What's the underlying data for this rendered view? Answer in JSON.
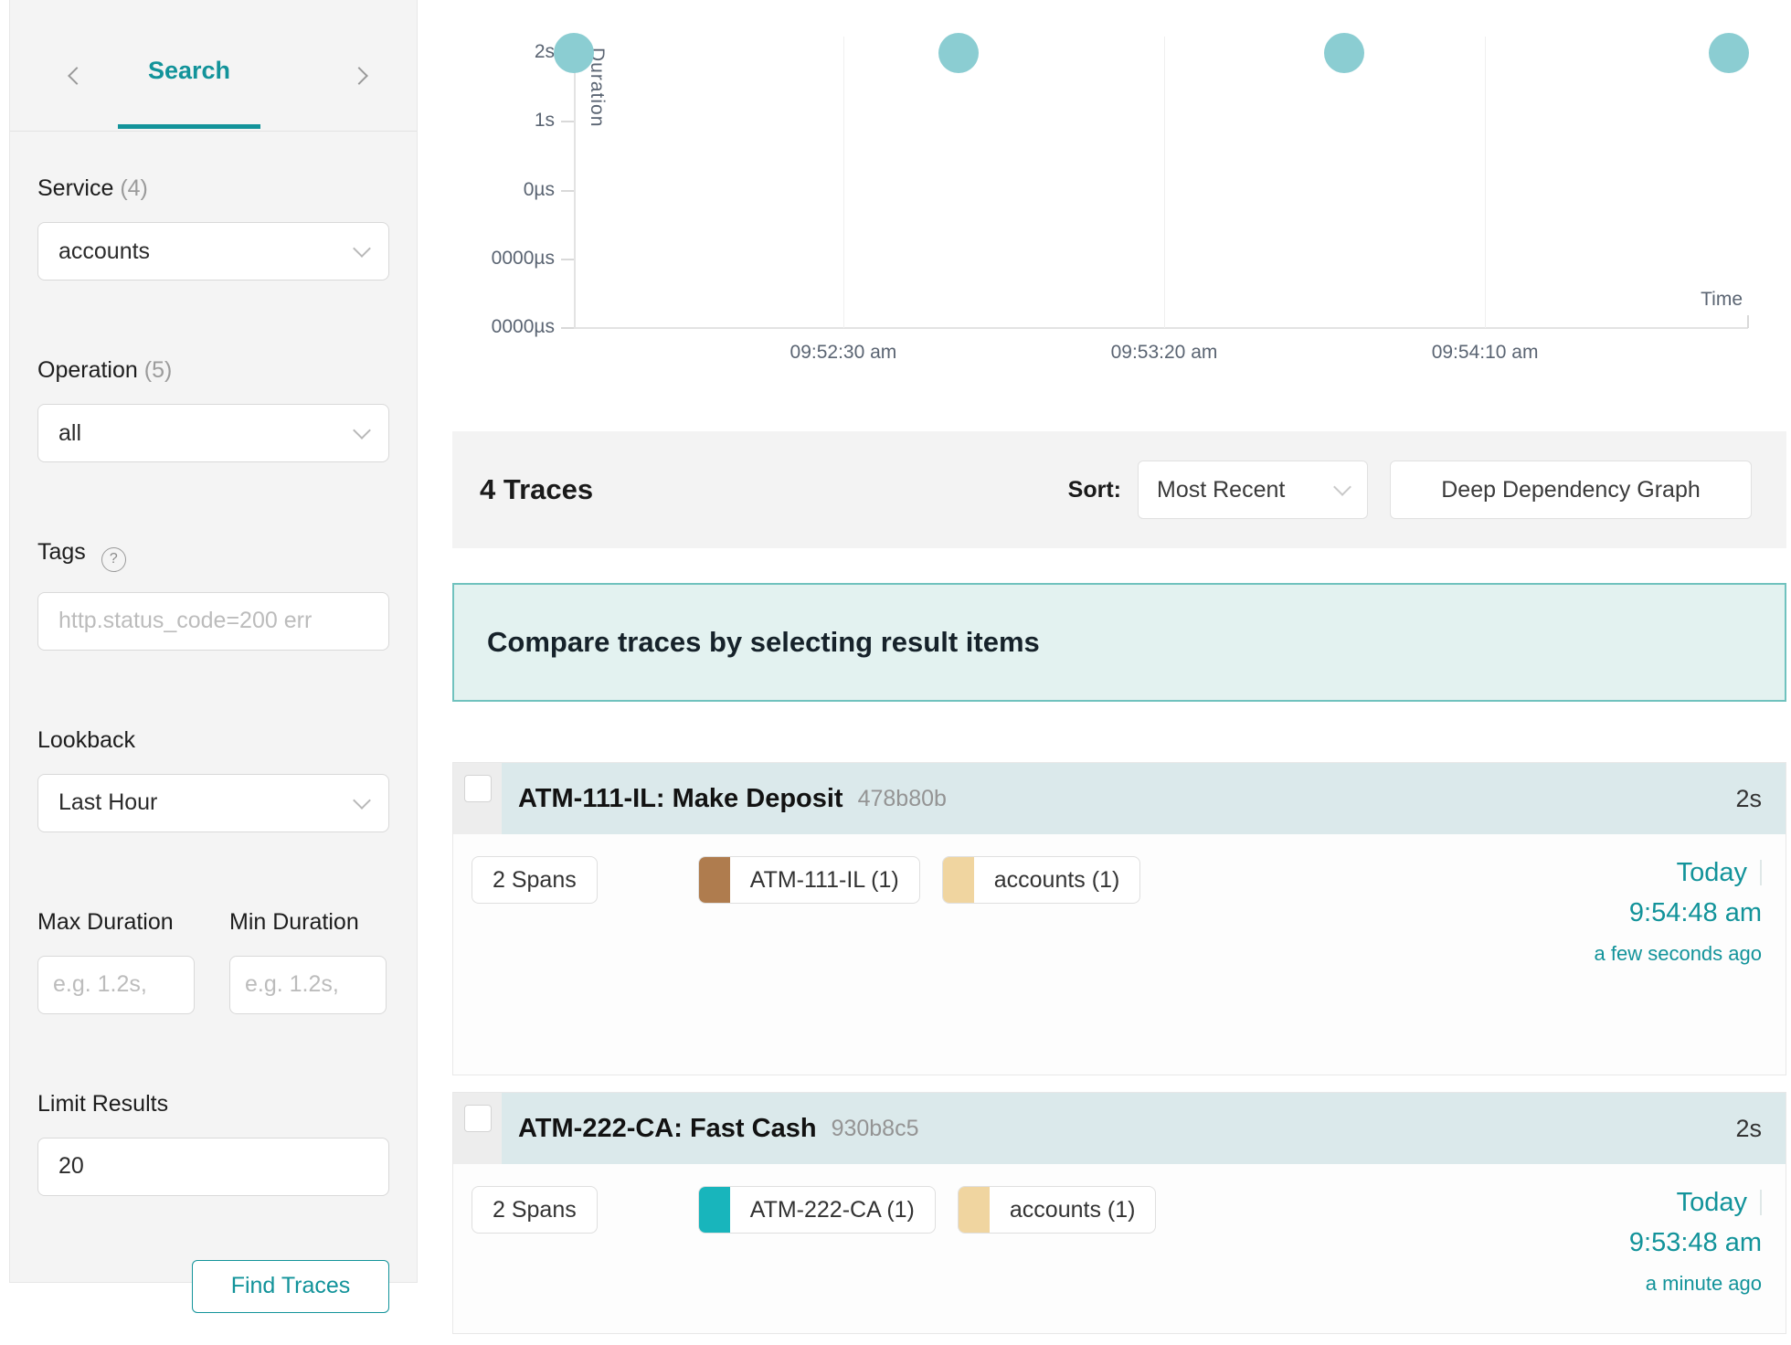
{
  "accent_color": "#12939a",
  "sidebar": {
    "tab_label": "Search",
    "service": {
      "label": "Service",
      "count": "(4)",
      "value": "accounts"
    },
    "operation": {
      "label": "Operation",
      "count": "(5)",
      "value": "all"
    },
    "tags": {
      "label": "Tags",
      "placeholder": "http.status_code=200 err"
    },
    "lookback": {
      "label": "Lookback",
      "value": "Last Hour"
    },
    "max_duration": {
      "label": "Max Duration",
      "placeholder": "e.g. 1.2s,"
    },
    "min_duration": {
      "label": "Min Duration",
      "placeholder": "e.g. 1.2s,"
    },
    "limit": {
      "label": "Limit Results",
      "value": "20"
    },
    "find_button": "Find Traces"
  },
  "chart_data": {
    "type": "scatter",
    "title": "",
    "xlabel": "Time",
    "ylabel": "Duration",
    "x_ticks": [
      "09:52:30 am",
      "09:53:20 am",
      "09:54:10 am"
    ],
    "y_ticks": [
      "2s",
      "1s",
      "0µs",
      "0000µs",
      "0000µs"
    ],
    "x_range": [
      "09:51:48 am",
      "09:54:51 am"
    ],
    "points": [
      {
        "time": "09:51:48 am",
        "duration": "2s"
      },
      {
        "time": "09:52:48 am",
        "duration": "2s"
      },
      {
        "time": "09:53:48 am",
        "duration": "2s"
      },
      {
        "time": "09:54:48 am",
        "duration": "2s"
      }
    ],
    "point_color": "#8bcdd2",
    "grid": "vertical-light"
  },
  "results": {
    "count_label": "4 Traces",
    "sort_label": "Sort:",
    "sort_value": "Most Recent",
    "ddg_button": "Deep Dependency Graph",
    "compare_banner": "Compare traces by selecting result items",
    "traces": [
      {
        "title": "ATM-111-IL: Make Deposit",
        "trace_id": "478b80b",
        "duration": "2s",
        "spans_label": "2 Spans",
        "services": [
          {
            "name": "ATM-111-IL (1)",
            "color": "#af7c4e"
          },
          {
            "name": "accounts (1)",
            "color": "#f0d5a0"
          }
        ],
        "date": "Today",
        "time": "9:54:48 am",
        "relative": "a few seconds ago"
      },
      {
        "title": "ATM-222-CA: Fast Cash",
        "trace_id": "930b8c5",
        "duration": "2s",
        "spans_label": "2 Spans",
        "services": [
          {
            "name": "ATM-222-CA (1)",
            "color": "#18b5bc"
          },
          {
            "name": "accounts (1)",
            "color": "#f0d5a0"
          }
        ],
        "date": "Today",
        "time": "9:53:48 am",
        "relative": "a minute ago"
      }
    ]
  }
}
